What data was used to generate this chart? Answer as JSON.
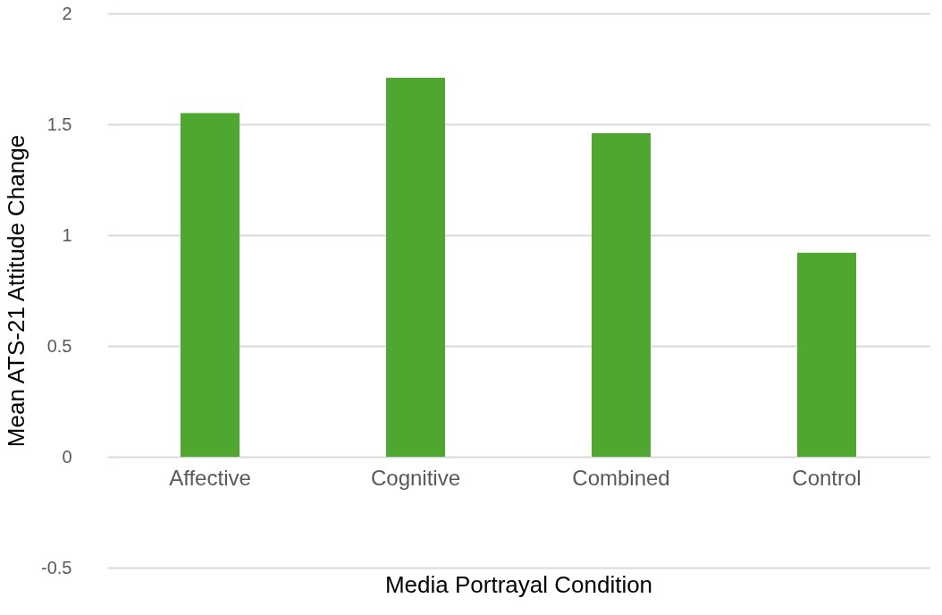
{
  "chart_data": {
    "type": "bar",
    "xlabel": "Media Portrayal Condition",
    "ylabel": "Mean ATS-21 Attitude Change",
    "categories": [
      "Affective",
      "Cognitive",
      "Combined",
      "Control"
    ],
    "series": [
      {
        "color": "#4ea72e",
        "values": [
          1.55,
          1.71,
          1.46,
          0.92
        ]
      }
    ],
    "ylim": [
      -0.5,
      2
    ],
    "yticks": [
      -0.5,
      0,
      0.5,
      1,
      1.5,
      2
    ],
    "grid": "y"
  }
}
